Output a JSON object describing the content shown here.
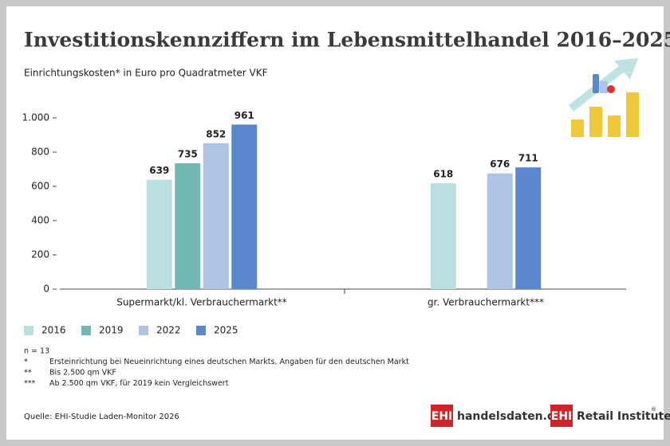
{
  "chart_data": {
    "type": "bar",
    "title": "Investitionskennziffern im Lebensmittelhandel 2016–2025",
    "subtitle": "Einrichtungskosten* in Euro pro Quadratmeter VKF",
    "categories": [
      "Supermarkt/kl. Verbrauchermarkt**",
      "gr. Verbrauchermarkt***"
    ],
    "series": [
      {
        "name": "2016",
        "color": "#b9dfe0",
        "values": [
          639,
          618
        ]
      },
      {
        "name": "2019",
        "color": "#72b9b5",
        "values": [
          735,
          null
        ]
      },
      {
        "name": "2022",
        "color": "#aec4e4",
        "values": [
          852,
          676
        ]
      },
      {
        "name": "2025",
        "color": "#5b87cc",
        "values": [
          961,
          711
        ]
      }
    ],
    "ylim": [
      0,
      1000
    ],
    "yticks": [
      0,
      200,
      400,
      600,
      800,
      {
        "value": 1000,
        "label": "1.000"
      }
    ],
    "grid": false,
    "legend": "bottom",
    "notes": [
      {
        "mark": "n = 13",
        "text": null
      },
      {
        "mark": "*",
        "text": "Ersteinrichtung bei Neueinrichtung eines deutschen Markts, Angaben für den deutschen Markt"
      },
      {
        "mark": "**",
        "text": "Bis 2.500 qm VKF"
      },
      {
        "mark": "***",
        "text": "Ab 2.500 qm VKF, für 2019 kein Vergleichswert"
      }
    ],
    "source": "Quelle: EHI-Studie Laden-Monitor 2026",
    "logos": [
      {
        "badge": "EHI",
        "text": "handelsdaten.de"
      },
      {
        "badge": "EHI",
        "text": "Retail Institute",
        "sup": "®"
      }
    ]
  }
}
